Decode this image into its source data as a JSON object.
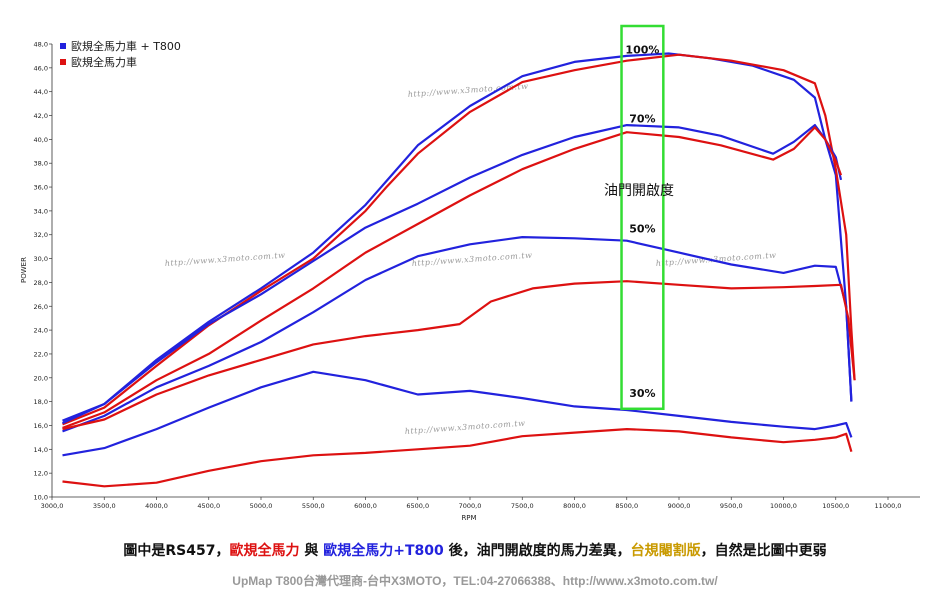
{
  "caption": {
    "p1": "圖中是",
    "p2": "RS457",
    "p3": "，",
    "p4": "歐規全馬力",
    "p5": " 與 ",
    "p6": "歐規全馬力+T800",
    "p7": " 後，油門開啟度的馬力差異，",
    "p8": "台規閹割版",
    "p9": "，自然是比圖中更弱"
  },
  "footer": {
    "text": "UpMap T800台灣代理商-台中X3MOTO，TEL:04-27066388、http://www.x3moto.com.tw/"
  },
  "watermark": {
    "text": "http://www.x3moto.com.tw"
  },
  "annotation": {
    "text": "油門開啟度"
  },
  "colors": {
    "blue": "#2222dd",
    "red": "#dd1111",
    "highlight": "#33dd33",
    "gold": "#c99a00"
  },
  "chart_data": {
    "type": "line",
    "xlabel": "RPM",
    "ylabel": "POWER",
    "xlim": [
      3000,
      11000
    ],
    "ylim": [
      10,
      48
    ],
    "x_ticks": [
      "3000,0",
      "3500,0",
      "4000,0",
      "4500,0",
      "5000,0",
      "5500,0",
      "6000,0",
      "6500,0",
      "7000,0",
      "7500,0",
      "8000,0",
      "8500,0",
      "9000,0",
      "9500,0",
      "10000,0",
      "10500,0",
      "11000,0"
    ],
    "y_ticks": [
      "10,0",
      "12,0",
      "14,0",
      "16,0",
      "18,0",
      "20,0",
      "22,0",
      "24,0",
      "26,0",
      "28,0",
      "30,0",
      "32,0",
      "34,0",
      "36,0",
      "38,0",
      "40,0",
      "42,0",
      "44,0",
      "46,0",
      "48,0"
    ],
    "legend": [
      {
        "label": "歐規全馬力車 + T800",
        "color": "#2222dd"
      },
      {
        "label": "歐規全馬力車",
        "color": "#dd1111"
      }
    ],
    "highlight_band": {
      "x": [
        8450,
        8850
      ],
      "y": [
        17.4,
        48
      ]
    },
    "throttle_labels": [
      {
        "text": "100%",
        "x": 8650,
        "y": 47.2
      },
      {
        "text": "70%",
        "x": 8650,
        "y": 41.4
      },
      {
        "text": "50%",
        "x": 8650,
        "y": 32.2
      },
      {
        "text": "30%",
        "x": 8650,
        "y": 18.4
      }
    ],
    "series": [
      {
        "name": "歐規全馬力車 + T800",
        "throttle": "100%",
        "color": "#2222dd",
        "points": [
          [
            3100,
            16.4
          ],
          [
            3500,
            17.8
          ],
          [
            4000,
            21.5
          ],
          [
            4500,
            24.7
          ],
          [
            5000,
            27.5
          ],
          [
            5500,
            30.5
          ],
          [
            6000,
            34.5
          ],
          [
            6200,
            36.5
          ],
          [
            6500,
            39.5
          ],
          [
            7000,
            42.8
          ],
          [
            7500,
            45.3
          ],
          [
            8000,
            46.5
          ],
          [
            8500,
            47.0
          ],
          [
            8900,
            47.2
          ],
          [
            9300,
            46.8
          ],
          [
            9700,
            46.2
          ],
          [
            10100,
            45.0
          ],
          [
            10300,
            43.5
          ],
          [
            10400,
            40.0
          ],
          [
            10500,
            37.0
          ],
          [
            10600,
            26.0
          ],
          [
            10650,
            18.0
          ]
        ]
      },
      {
        "name": "歐規全馬力車",
        "throttle": "100%",
        "color": "#dd1111",
        "points": [
          [
            3100,
            16.1
          ],
          [
            3500,
            17.5
          ],
          [
            4000,
            21.0
          ],
          [
            4500,
            24.4
          ],
          [
            5000,
            27.3
          ],
          [
            5500,
            30.0
          ],
          [
            6000,
            34.0
          ],
          [
            6200,
            36.0
          ],
          [
            6500,
            38.8
          ],
          [
            7000,
            42.3
          ],
          [
            7500,
            44.8
          ],
          [
            8000,
            45.8
          ],
          [
            8500,
            46.6
          ],
          [
            9000,
            47.1
          ],
          [
            9500,
            46.6
          ],
          [
            10000,
            45.8
          ],
          [
            10300,
            44.7
          ],
          [
            10400,
            42.0
          ],
          [
            10500,
            37.5
          ],
          [
            10600,
            32.0
          ],
          [
            10650,
            24.0
          ],
          [
            10680,
            19.8
          ]
        ]
      },
      {
        "name": "歐規全馬力車 + T800",
        "throttle": "70%",
        "color": "#2222dd",
        "points": [
          [
            3100,
            16.2
          ],
          [
            3500,
            17.8
          ],
          [
            4000,
            21.3
          ],
          [
            4500,
            24.5
          ],
          [
            5000,
            27.0
          ],
          [
            5500,
            29.8
          ],
          [
            6000,
            32.6
          ],
          [
            6500,
            34.6
          ],
          [
            7000,
            36.8
          ],
          [
            7500,
            38.7
          ],
          [
            8000,
            40.2
          ],
          [
            8500,
            41.2
          ],
          [
            9000,
            41.0
          ],
          [
            9400,
            40.3
          ],
          [
            9900,
            38.8
          ],
          [
            10100,
            39.8
          ],
          [
            10300,
            41.2
          ],
          [
            10400,
            40.0
          ],
          [
            10500,
            38.5
          ],
          [
            10550,
            36.6
          ]
        ]
      },
      {
        "name": "歐規全馬力車",
        "throttle": "70%",
        "color": "#dd1111",
        "points": [
          [
            3100,
            15.8
          ],
          [
            3500,
            17.1
          ],
          [
            4000,
            19.8
          ],
          [
            4500,
            22.0
          ],
          [
            5000,
            24.8
          ],
          [
            5500,
            27.5
          ],
          [
            6000,
            30.5
          ],
          [
            6500,
            32.9
          ],
          [
            7000,
            35.3
          ],
          [
            7500,
            37.5
          ],
          [
            8000,
            39.2
          ],
          [
            8500,
            40.6
          ],
          [
            9000,
            40.2
          ],
          [
            9400,
            39.5
          ],
          [
            9900,
            38.3
          ],
          [
            10100,
            39.2
          ],
          [
            10300,
            41.0
          ],
          [
            10400,
            40.0
          ],
          [
            10500,
            38.2
          ],
          [
            10550,
            37.0
          ]
        ]
      },
      {
        "name": "歐規全馬力車 + T800",
        "throttle": "50%",
        "color": "#2222dd",
        "points": [
          [
            3100,
            15.5
          ],
          [
            3500,
            16.8
          ],
          [
            4000,
            19.2
          ],
          [
            4500,
            21.0
          ],
          [
            5000,
            23.0
          ],
          [
            5500,
            25.5
          ],
          [
            6000,
            28.2
          ],
          [
            6500,
            30.2
          ],
          [
            7000,
            31.2
          ],
          [
            7500,
            31.8
          ],
          [
            8000,
            31.7
          ],
          [
            8500,
            31.5
          ],
          [
            9000,
            30.5
          ],
          [
            9500,
            29.5
          ],
          [
            10000,
            28.8
          ],
          [
            10300,
            29.4
          ],
          [
            10500,
            29.3
          ],
          [
            10600,
            26.0
          ],
          [
            10650,
            18.0
          ]
        ]
      },
      {
        "name": "歐規全馬力車",
        "throttle": "50%",
        "color": "#dd1111",
        "points": [
          [
            3100,
            15.7
          ],
          [
            3500,
            16.5
          ],
          [
            4000,
            18.6
          ],
          [
            4500,
            20.2
          ],
          [
            5000,
            21.5
          ],
          [
            5500,
            22.8
          ],
          [
            6000,
            23.5
          ],
          [
            6500,
            24.0
          ],
          [
            6900,
            24.5
          ],
          [
            7200,
            26.4
          ],
          [
            7600,
            27.5
          ],
          [
            8000,
            27.9
          ],
          [
            8500,
            28.1
          ],
          [
            9000,
            27.8
          ],
          [
            9500,
            27.5
          ],
          [
            10000,
            27.6
          ],
          [
            10300,
            27.7
          ],
          [
            10550,
            27.8
          ],
          [
            10620,
            25.0
          ],
          [
            10680,
            19.8
          ]
        ]
      },
      {
        "name": "歐規全馬力車 + T800",
        "throttle": "30%",
        "color": "#2222dd",
        "points": [
          [
            3100,
            13.5
          ],
          [
            3500,
            14.1
          ],
          [
            4000,
            15.7
          ],
          [
            4500,
            17.5
          ],
          [
            5000,
            19.2
          ],
          [
            5500,
            20.5
          ],
          [
            6000,
            19.8
          ],
          [
            6500,
            18.6
          ],
          [
            7000,
            18.9
          ],
          [
            7500,
            18.3
          ],
          [
            8000,
            17.6
          ],
          [
            8500,
            17.3
          ],
          [
            9000,
            16.8
          ],
          [
            9500,
            16.3
          ],
          [
            10000,
            15.9
          ],
          [
            10300,
            15.7
          ],
          [
            10500,
            16.0
          ],
          [
            10600,
            16.2
          ],
          [
            10650,
            15.0
          ]
        ]
      },
      {
        "name": "歐規全馬力車",
        "throttle": "30%",
        "color": "#dd1111",
        "points": [
          [
            3100,
            11.3
          ],
          [
            3500,
            10.9
          ],
          [
            4000,
            11.2
          ],
          [
            4500,
            12.2
          ],
          [
            5000,
            13.0
          ],
          [
            5500,
            13.5
          ],
          [
            6000,
            13.7
          ],
          [
            6500,
            14.0
          ],
          [
            7000,
            14.3
          ],
          [
            7500,
            15.1
          ],
          [
            8000,
            15.4
          ],
          [
            8500,
            15.7
          ],
          [
            9000,
            15.5
          ],
          [
            9500,
            15.0
          ],
          [
            10000,
            14.6
          ],
          [
            10300,
            14.8
          ],
          [
            10500,
            15.0
          ],
          [
            10600,
            15.3
          ],
          [
            10650,
            13.8
          ]
        ]
      }
    ]
  }
}
